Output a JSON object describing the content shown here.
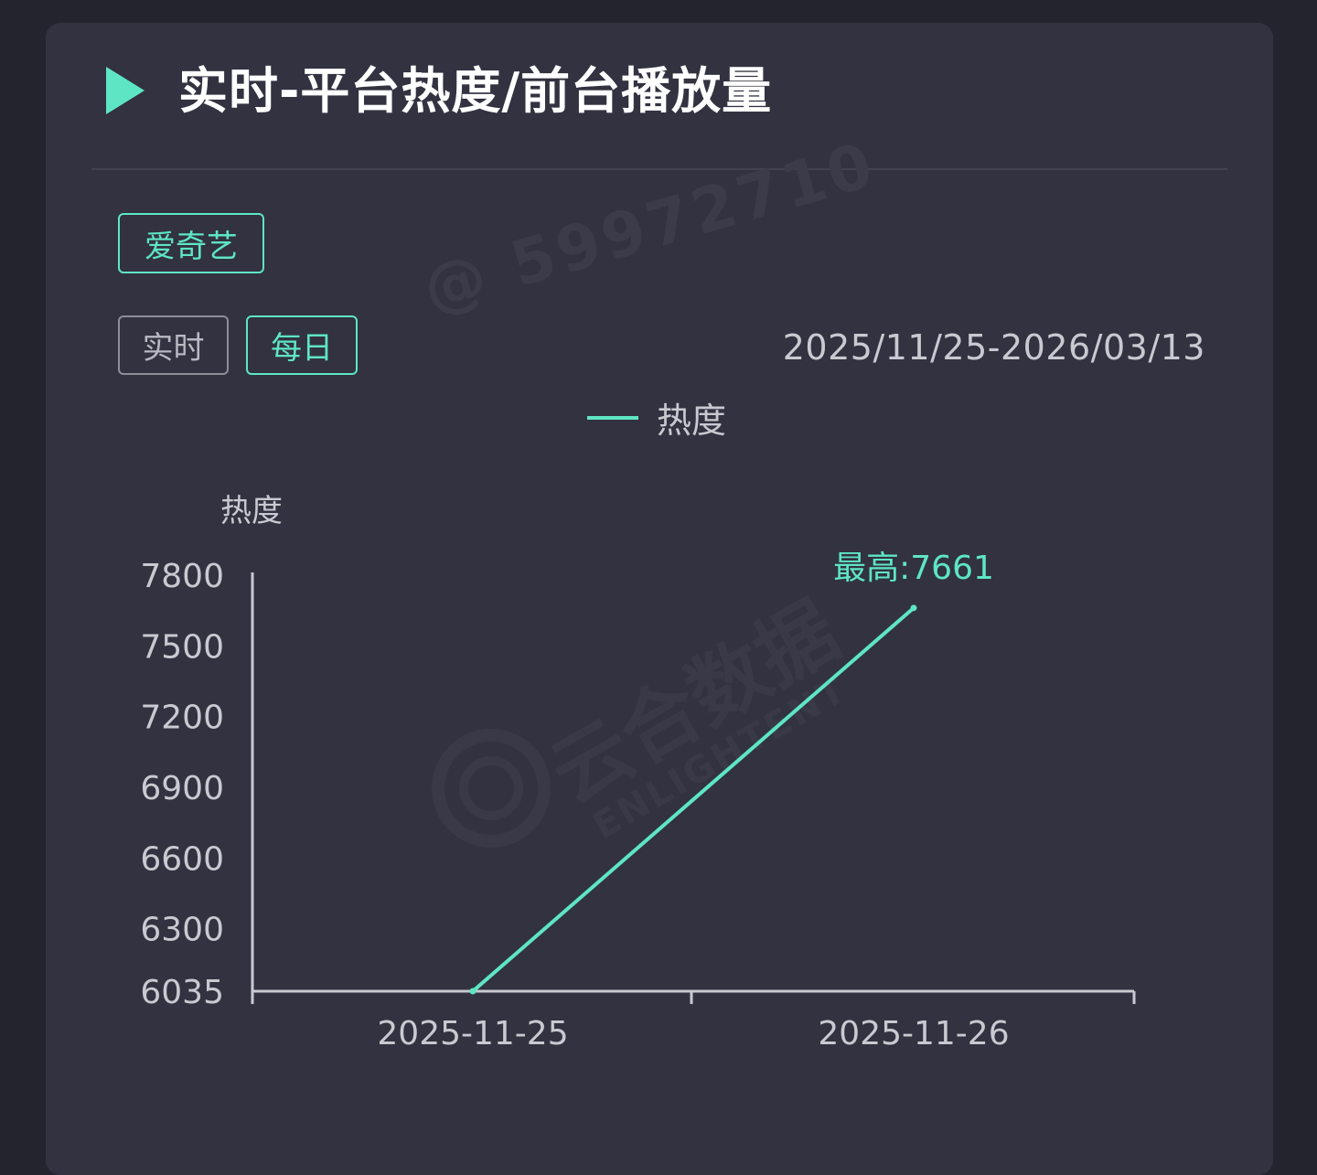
{
  "header": {
    "title": "实时-平台热度/前台播放量"
  },
  "filters": {
    "platform": "爱奇艺",
    "tabs": [
      {
        "label": "实时",
        "active": false
      },
      {
        "label": "每日",
        "active": true
      }
    ],
    "date_range": "2025/11/25-2026/03/13"
  },
  "watermark": {
    "user_id": "@ 59972710",
    "brand_cn": "云合数据",
    "brand_en": "ENLIGHTENT"
  },
  "colors": {
    "accent": "#5ee6c4",
    "card": "#323241",
    "background": "#24242f"
  },
  "chart_data": {
    "type": "line",
    "title": "",
    "legend": {
      "entries": [
        "热度"
      ],
      "placement": "top-center"
    },
    "ylabel": "热度",
    "xlabel": "",
    "x": [
      "2025-11-25",
      "2025-11-26"
    ],
    "series": [
      {
        "name": "热度",
        "values": [
          6035,
          7661
        ]
      }
    ],
    "ylim": [
      6035,
      7800
    ],
    "yticks": [
      7800,
      7500,
      7200,
      6900,
      6600,
      6300,
      6035
    ],
    "annotations": [
      {
        "label": "最高:7661",
        "x": "2025-11-26",
        "y": 7661
      }
    ],
    "grid": false
  }
}
